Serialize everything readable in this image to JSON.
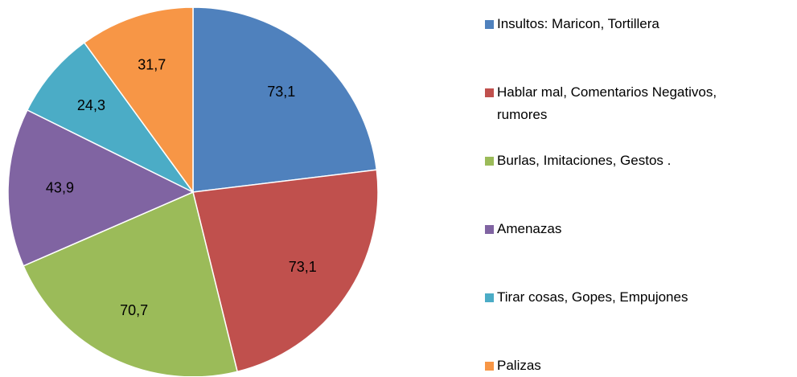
{
  "chart_data": {
    "type": "pie",
    "categories": [
      "Insultos: Maricon, Tortillera",
      "Hablar mal, Comentarios Negativos, rumores",
      "Burlas, Imitaciones, Gestos .",
      "Amenazas",
      "Tirar cosas, Gopes, Empujones",
      "Palizas"
    ],
    "values": [
      73.1,
      73.1,
      70.7,
      43.9,
      24.3,
      31.7
    ],
    "value_labels": [
      "73,1",
      "73,1",
      "70,7",
      "43,9",
      "24,3",
      "31,7"
    ],
    "colors": [
      "#4f81bd",
      "#c0504d",
      "#9bbb59",
      "#8064a2",
      "#4bacc6",
      "#f79646"
    ],
    "legend": "right"
  }
}
